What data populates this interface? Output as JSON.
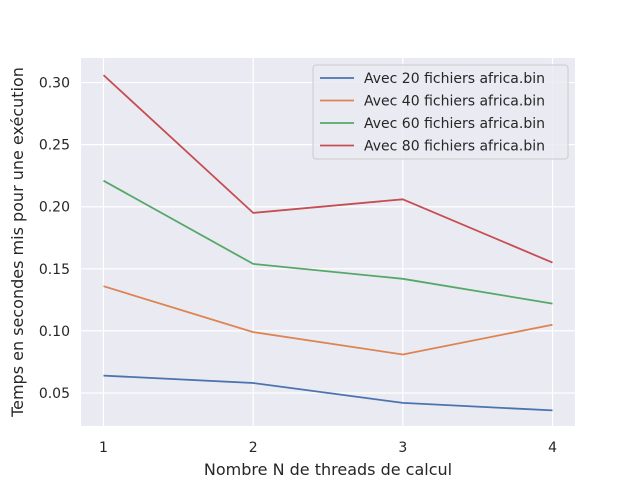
{
  "chart_data": {
    "type": "line",
    "title": "",
    "xlabel": "Nombre N de threads de calcul",
    "ylabel": "Temps en secondes mis pour une exécution",
    "x": [
      1,
      2,
      3,
      4
    ],
    "x_ticks": [
      "1",
      "2",
      "3",
      "4"
    ],
    "y_ticks": [
      "0.05",
      "0.10",
      "0.15",
      "0.20",
      "0.25",
      "0.30"
    ],
    "xlim": [
      0.85,
      4.15
    ],
    "ylim": [
      0.0234,
      0.3198
    ],
    "grid": true,
    "legend_position": "top-right",
    "series": [
      {
        "name": "Avec 20 fichiers africa.bin",
        "color": "#4c72b0",
        "values": [
          0.064,
          0.058,
          0.042,
          0.036
        ]
      },
      {
        "name": "Avec 40 fichiers africa.bin",
        "color": "#dd8452",
        "values": [
          0.136,
          0.099,
          0.081,
          0.105
        ]
      },
      {
        "name": "Avec 60 fichiers africa.bin",
        "color": "#55a868",
        "values": [
          0.221,
          0.154,
          0.142,
          0.122
        ]
      },
      {
        "name": "Avec 80 fichiers africa.bin",
        "color": "#c44e52",
        "values": [
          0.306,
          0.195,
          0.206,
          0.155
        ]
      }
    ]
  }
}
